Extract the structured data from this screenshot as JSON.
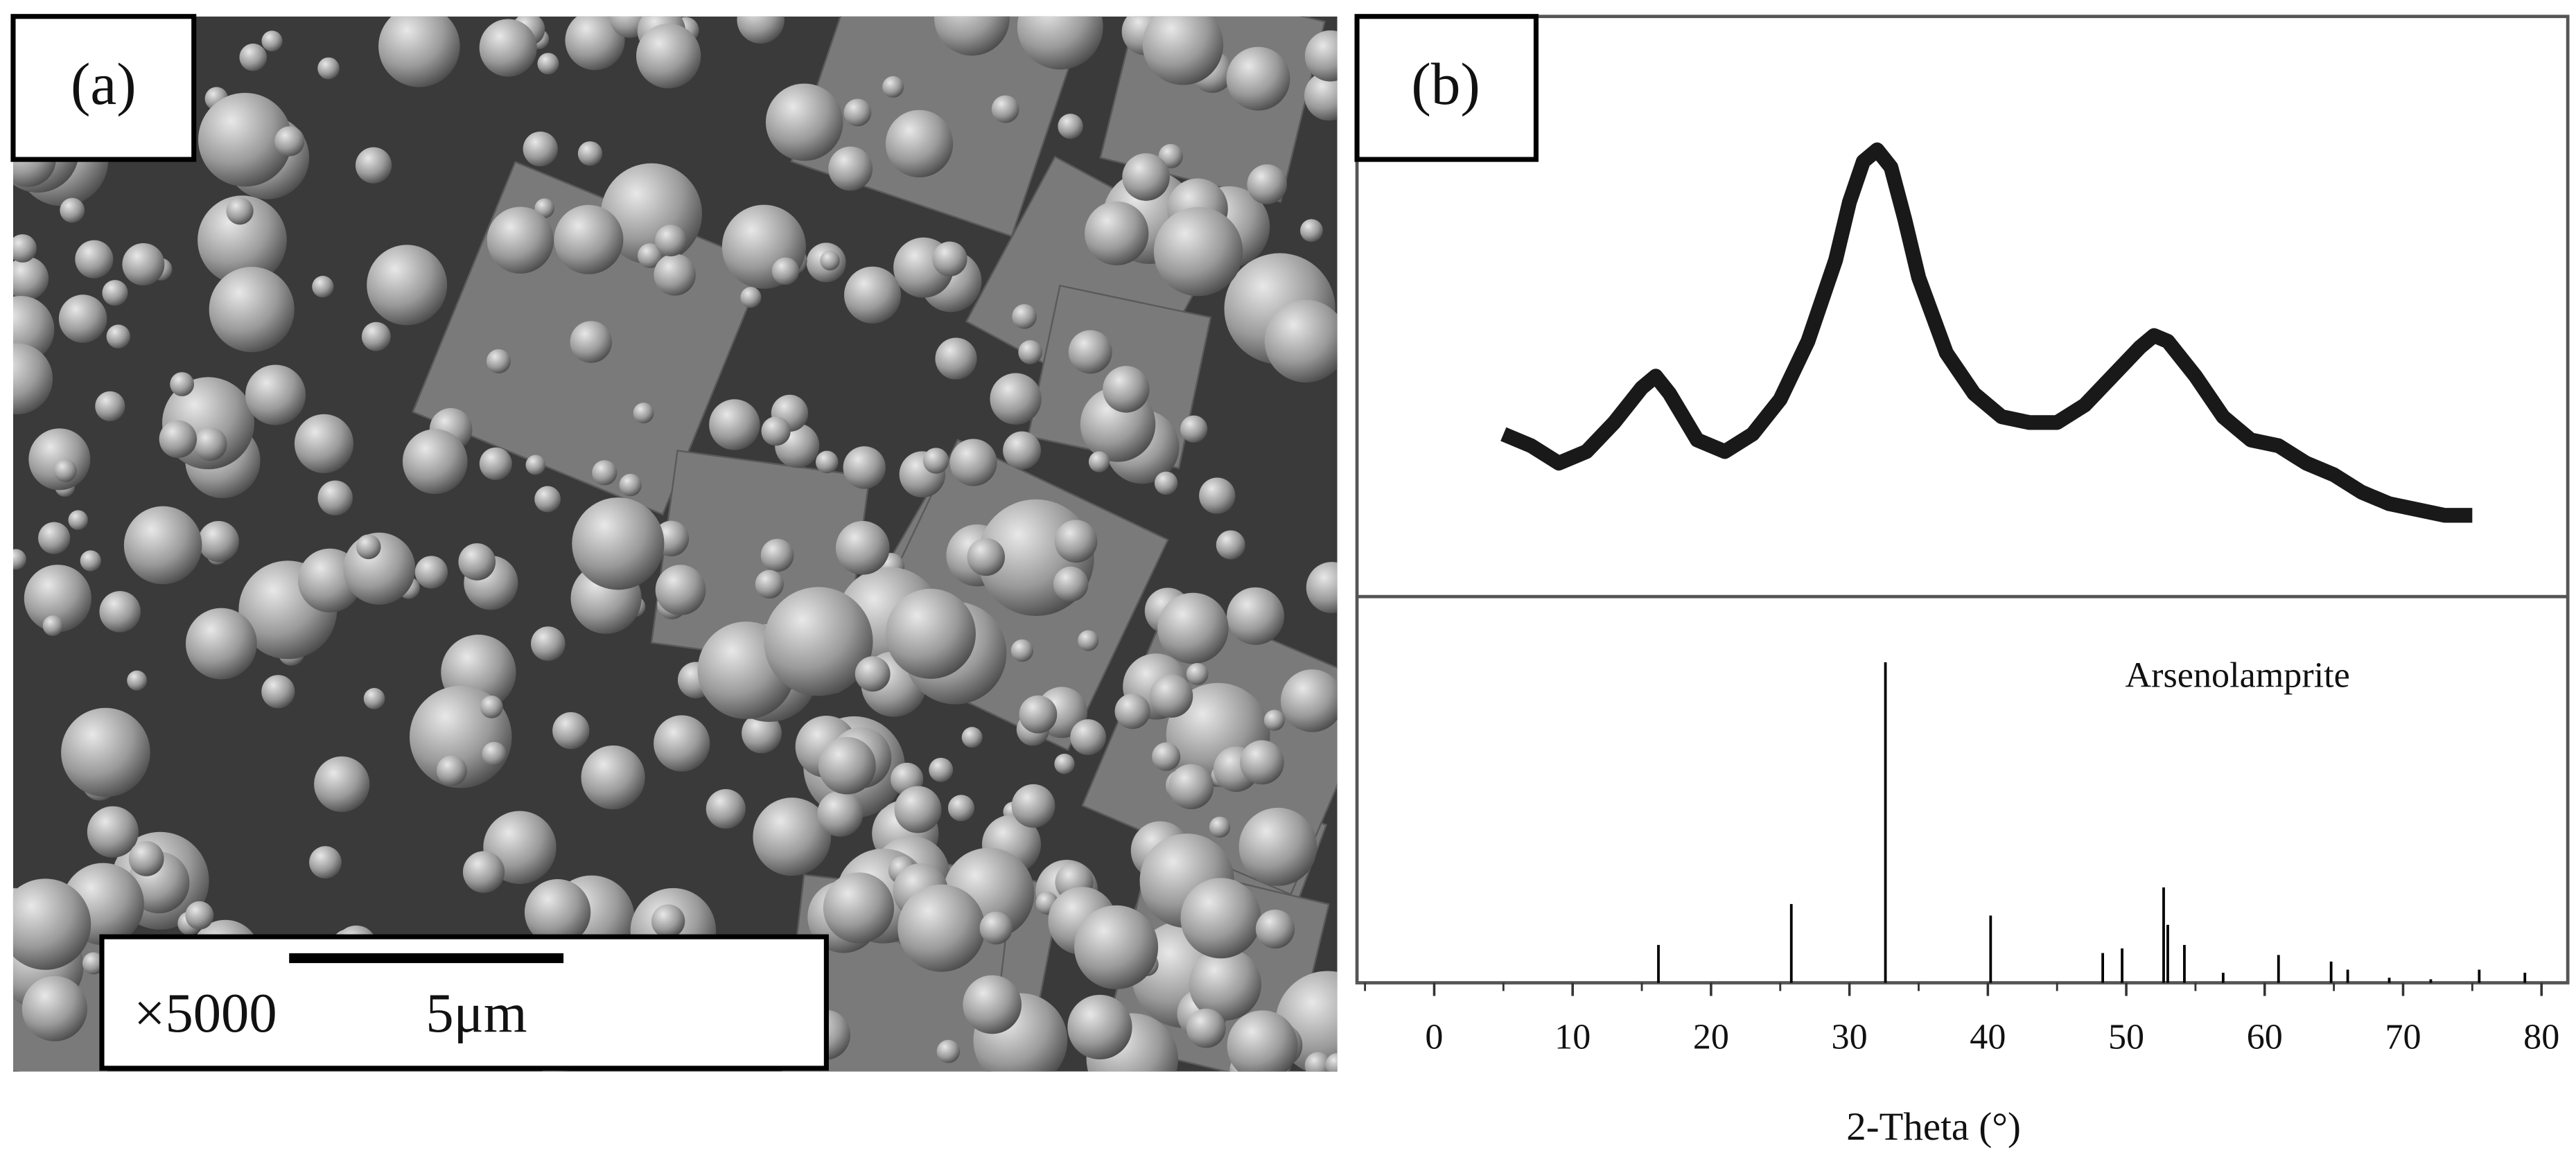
{
  "panel_a": {
    "label": "(a)",
    "magnification": "×5000",
    "scale_bar": "5μm"
  },
  "panel_b": {
    "label": "(b)"
  },
  "chart_data": [
    {
      "type": "line",
      "color": "#000000",
      "x": [
        5,
        7,
        9,
        11,
        13,
        15,
        16,
        17,
        19,
        21,
        23,
        25,
        27,
        29,
        30,
        31,
        32,
        33,
        34,
        35,
        37,
        39,
        41,
        43,
        45,
        47,
        49,
        51,
        52,
        53,
        55,
        57,
        59,
        61,
        63,
        65,
        67,
        69,
        71,
        73,
        75
      ],
      "values": [
        28,
        26,
        23,
        25,
        30,
        36,
        38,
        35,
        27,
        25,
        28,
        34,
        44,
        58,
        68,
        75,
        77,
        74,
        65,
        55,
        42,
        35,
        31,
        30,
        30,
        33,
        38,
        43,
        45,
        44,
        38,
        31,
        27,
        26,
        23,
        21,
        18,
        16,
        15,
        14,
        14
      ],
      "xlim": [
        -5,
        80
      ],
      "ylim": [
        0,
        100
      ]
    },
    {
      "type": "stick",
      "color": "#000000",
      "annotation": "Arsenolamprite",
      "x": [
        16.2,
        25.8,
        32.6,
        40.2,
        48.3,
        49.7,
        52.7,
        53.0,
        54.2,
        57.0,
        61.0,
        64.8,
        66.0,
        69.0,
        72.0,
        75.5,
        78.8
      ],
      "values": [
        9.8,
        20.4,
        83,
        17.4,
        7.7,
        8.9,
        24.7,
        15,
        9.8,
        2.6,
        7.2,
        5.5,
        3.4,
        1.3,
        0.9,
        3.4,
        2.6
      ],
      "xlim": [
        -5,
        80
      ],
      "ylim": [
        0,
        100
      ],
      "xticks": [
        0,
        10,
        20,
        30,
        40,
        50,
        60,
        70,
        80
      ],
      "xlabel": "2-Theta (°)"
    }
  ]
}
